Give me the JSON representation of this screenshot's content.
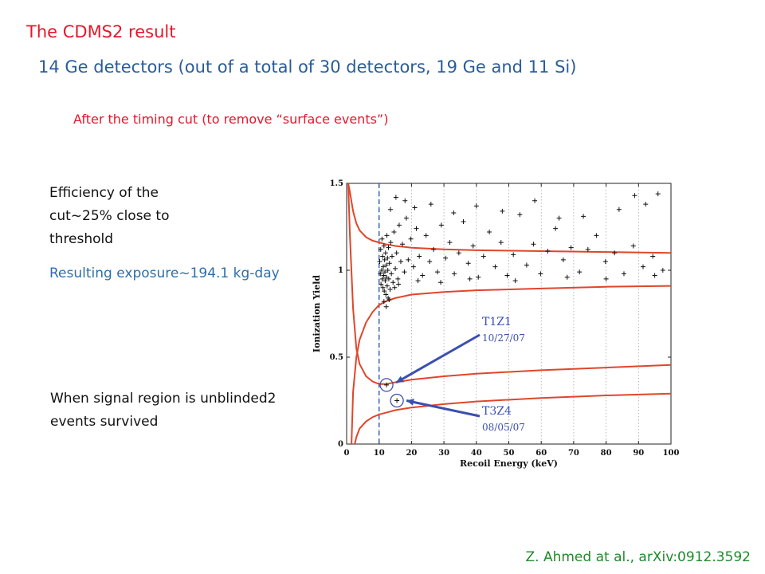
{
  "slide": {
    "title": "The CDMS2 result",
    "subtitle": "14 Ge detectors (out of a total of 30 detectors, 19 Ge and 11 Si)",
    "cut_note": "After the timing cut (to remove “surface events”)",
    "efficiency_note": "Efficiency of the cut~25% close to threshold",
    "exposure_note": "Resulting exposure~194.1 kg-day",
    "signal_note": "When signal region is unblinded2 events survived",
    "citation": "Z. Ahmed at al., arXiv:0912.3592"
  },
  "colors": {
    "title_red": "#e3182b",
    "subtitle_blue": "#2a5c9a",
    "exposure_blue": "#2f6ea8",
    "citation_green": "#1f8a2a",
    "band_curve": "#e0462a",
    "arrow_blue": "#3b4fb0",
    "threshold_line": "#2b5aa0"
  },
  "chart_data": {
    "type": "scatter",
    "xlabel": "Recoil Energy (keV)",
    "ylabel": "Ionization Yield",
    "xlim": [
      0,
      100
    ],
    "ylim": [
      0,
      1.5
    ],
    "x_ticks": [
      "0",
      "10",
      "20",
      "30",
      "40",
      "50",
      "60",
      "70",
      "80",
      "90",
      "100"
    ],
    "y_ticks": [
      "0",
      "0.5",
      "1",
      "1.5"
    ],
    "grid": "vertical dotted",
    "threshold_keV": 10,
    "curves": [
      {
        "name": "nuclear_recoil_upper",
        "x": [
          0.5,
          1,
          2,
          3,
          4,
          6,
          8,
          10,
          12,
          15,
          20,
          30,
          40,
          60,
          80,
          100
        ],
        "y": [
          1.5,
          1.2,
          0.78,
          0.55,
          0.46,
          0.39,
          0.36,
          0.345,
          0.345,
          0.355,
          0.37,
          0.39,
          0.405,
          0.425,
          0.44,
          0.455
        ]
      },
      {
        "name": "nuclear_recoil_lower",
        "x": [
          2.5,
          3,
          4,
          6,
          8,
          10,
          12,
          15,
          20,
          30,
          40,
          60,
          80,
          100
        ],
        "y": [
          0,
          0.04,
          0.09,
          0.13,
          0.155,
          0.17,
          0.18,
          0.195,
          0.21,
          0.23,
          0.245,
          0.265,
          0.28,
          0.29
        ]
      },
      {
        "name": "electron_recoil_upper",
        "x": [
          0.5,
          1,
          2,
          3,
          4,
          6,
          8,
          10,
          12,
          15,
          20,
          30,
          40,
          60,
          80,
          100
        ],
        "y": [
          1.5,
          1.45,
          1.34,
          1.27,
          1.23,
          1.19,
          1.17,
          1.16,
          1.15,
          1.14,
          1.13,
          1.12,
          1.115,
          1.11,
          1.105,
          1.1
        ]
      },
      {
        "name": "electron_recoil_lower",
        "x": [
          1.5,
          2,
          3,
          4,
          6,
          8,
          10,
          12,
          15,
          20,
          30,
          40,
          60,
          80,
          100
        ],
        "y": [
          0,
          0.3,
          0.5,
          0.6,
          0.7,
          0.76,
          0.8,
          0.82,
          0.84,
          0.86,
          0.875,
          0.885,
          0.895,
          0.905,
          0.91
        ]
      }
    ],
    "events": [
      [
        10.2,
        1.05
      ],
      [
        10.4,
        0.98
      ],
      [
        10.5,
        1.12
      ],
      [
        10.6,
        0.92
      ],
      [
        10.8,
        1.0
      ],
      [
        10.9,
        1.18
      ],
      [
        11.0,
        0.95
      ],
      [
        11.1,
        1.08
      ],
      [
        11.2,
        0.9
      ],
      [
        11.3,
        1.02
      ],
      [
        11.4,
        0.97
      ],
      [
        11.5,
        1.14
      ],
      [
        11.6,
        0.88
      ],
      [
        11.7,
        1.06
      ],
      [
        11.8,
        0.99
      ],
      [
        11.9,
        0.94
      ],
      [
        12.0,
        1.1
      ],
      [
        12.1,
        0.86
      ],
      [
        12.2,
        1.03
      ],
      [
        12.3,
        0.96
      ],
      [
        12.4,
        1.2
      ],
      [
        12.5,
        0.91
      ],
      [
        12.6,
        1.07
      ],
      [
        12.7,
        1.0
      ],
      [
        12.8,
        0.84
      ],
      [
        12.9,
        1.13
      ],
      [
        13.0,
        0.95
      ],
      [
        13.2,
        1.04
      ],
      [
        13.4,
        0.89
      ],
      [
        13.6,
        1.16
      ],
      [
        13.8,
        0.98
      ],
      [
        14.0,
        1.08
      ],
      [
        14.3,
        0.93
      ],
      [
        14.6,
        1.22
      ],
      [
        15.0,
        1.01
      ],
      [
        15.4,
        1.1
      ],
      [
        15.8,
        0.95
      ],
      [
        16.2,
        1.26
      ],
      [
        16.7,
        1.05
      ],
      [
        17.2,
        1.15
      ],
      [
        17.8,
        0.99
      ],
      [
        18.4,
        1.3
      ],
      [
        19.0,
        1.06
      ],
      [
        19.8,
        1.18
      ],
      [
        20.6,
        1.02
      ],
      [
        21.5,
        1.24
      ],
      [
        22.4,
        1.08
      ],
      [
        23.4,
        0.97
      ],
      [
        24.5,
        1.2
      ],
      [
        25.6,
        1.05
      ],
      [
        26.8,
        1.12
      ],
      [
        28.0,
        0.99
      ],
      [
        29.2,
        1.26
      ],
      [
        30.5,
        1.07
      ],
      [
        31.8,
        1.16
      ],
      [
        33.2,
        0.98
      ],
      [
        34.6,
        1.1
      ],
      [
        36.0,
        1.28
      ],
      [
        37.5,
        1.04
      ],
      [
        39.0,
        1.14
      ],
      [
        40.6,
        0.96
      ],
      [
        42.2,
        1.08
      ],
      [
        44.0,
        1.22
      ],
      [
        45.8,
        1.02
      ],
      [
        47.6,
        1.16
      ],
      [
        49.5,
        0.97
      ],
      [
        51.4,
        1.09
      ],
      [
        53.4,
        1.32
      ],
      [
        55.5,
        1.03
      ],
      [
        57.6,
        1.15
      ],
      [
        59.8,
        0.98
      ],
      [
        62.0,
        1.11
      ],
      [
        64.4,
        1.24
      ],
      [
        66.8,
        1.06
      ],
      [
        69.2,
        1.13
      ],
      [
        71.8,
        0.99
      ],
      [
        74.4,
        1.12
      ],
      [
        77.0,
        1.2
      ],
      [
        79.8,
        1.05
      ],
      [
        82.6,
        1.1
      ],
      [
        85.5,
        0.98
      ],
      [
        88.4,
        1.14
      ],
      [
        91.4,
        1.02
      ],
      [
        94.4,
        1.08
      ],
      [
        97.5,
        1.0
      ],
      [
        13.5,
        1.35
      ],
      [
        15.2,
        1.42
      ],
      [
        18.0,
        1.4
      ],
      [
        21.0,
        1.36
      ],
      [
        26.0,
        1.38
      ],
      [
        33.0,
        1.33
      ],
      [
        40.0,
        1.37
      ],
      [
        48.0,
        1.34
      ],
      [
        58.0,
        1.4
      ],
      [
        65.5,
        1.3
      ],
      [
        73.0,
        1.31
      ],
      [
        84.0,
        1.35
      ],
      [
        88.8,
        1.43
      ],
      [
        92.2,
        1.38
      ],
      [
        96.0,
        1.44
      ],
      [
        11.5,
        0.82
      ],
      [
        12.2,
        0.79
      ],
      [
        13.1,
        0.83
      ],
      [
        14.8,
        0.9
      ],
      [
        16.0,
        0.92
      ],
      [
        22.0,
        0.94
      ],
      [
        29.0,
        0.93
      ],
      [
        38.0,
        0.95
      ],
      [
        52.0,
        0.94
      ],
      [
        68.0,
        0.96
      ],
      [
        80.0,
        0.95
      ],
      [
        95.0,
        0.97
      ]
    ],
    "highlighted_events": [
      {
        "detector": "T1Z1",
        "date": "10/27/07",
        "x": 12.3,
        "y": 0.34
      },
      {
        "detector": "T3Z4",
        "date": "08/05/07",
        "x": 15.5,
        "y": 0.25
      }
    ]
  }
}
